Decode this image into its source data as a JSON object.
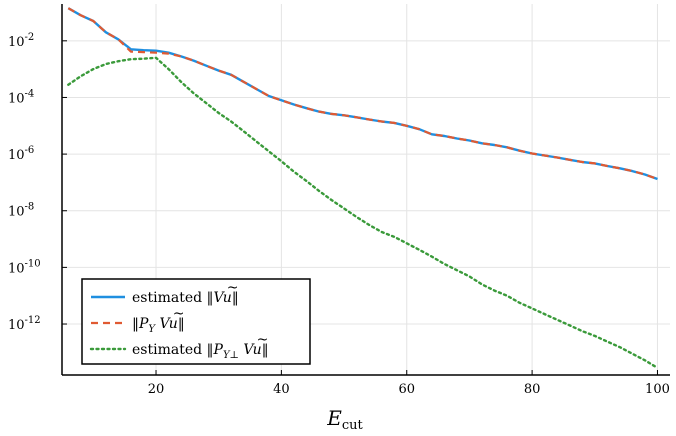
{
  "chart_data": {
    "type": "line",
    "title": "",
    "xlabel": "E",
    "xlabel_sub": "cut",
    "ylabel": "",
    "y_scale": "log",
    "xlim": [
      5,
      102
    ],
    "ylim": [
      -13.8,
      -0.7
    ],
    "grid": true,
    "legend_position": "bottom-left",
    "x_ticks": [
      20,
      40,
      60,
      80,
      100
    ],
    "x_tick_labels": [
      "20",
      "40",
      "60",
      "80",
      "100"
    ],
    "y_ticks": [
      -12,
      -10,
      -8,
      -6,
      -4,
      -2
    ],
    "y_tick_labels": [
      {
        "base": "10",
        "exp": "-12"
      },
      {
        "base": "10",
        "exp": "-10"
      },
      {
        "base": "10",
        "exp": "-8"
      },
      {
        "base": "10",
        "exp": "-6"
      },
      {
        "base": "10",
        "exp": "-4"
      },
      {
        "base": "10",
        "exp": "-2"
      }
    ],
    "x": [
      6,
      8,
      10,
      12,
      14,
      16,
      18,
      20,
      22,
      24,
      26,
      28,
      30,
      32,
      34,
      36,
      38,
      40,
      42,
      44,
      46,
      48,
      50,
      52,
      54,
      56,
      58,
      60,
      62,
      64,
      66,
      68,
      70,
      72,
      74,
      76,
      78,
      80,
      82,
      84,
      86,
      88,
      90,
      92,
      94,
      96,
      98,
      100
    ],
    "series": [
      {
        "name": "estimated ‖V ũ‖",
        "color": "#1f8fe0",
        "dash": "solid",
        "log10_values": [
          -0.85,
          -1.1,
          -1.3,
          -1.7,
          -1.95,
          -2.3,
          -2.33,
          -2.35,
          -2.42,
          -2.55,
          -2.7,
          -2.88,
          -3.05,
          -3.2,
          -3.45,
          -3.7,
          -3.95,
          -4.1,
          -4.25,
          -4.38,
          -4.5,
          -4.58,
          -4.63,
          -4.7,
          -4.78,
          -4.85,
          -4.9,
          -5.0,
          -5.12,
          -5.3,
          -5.36,
          -5.45,
          -5.52,
          -5.62,
          -5.68,
          -5.76,
          -5.88,
          -5.98,
          -6.05,
          -6.12,
          -6.2,
          -6.28,
          -6.33,
          -6.42,
          -6.5,
          -6.6,
          -6.72,
          -6.88
        ]
      },
      {
        "name": "‖P_Y V ũ‖",
        "color": "#e05a32",
        "dash": "dashed",
        "log10_values": [
          -0.85,
          -1.1,
          -1.3,
          -1.7,
          -1.95,
          -2.38,
          -2.4,
          -2.42,
          -2.45,
          -2.55,
          -2.7,
          -2.88,
          -3.05,
          -3.2,
          -3.45,
          -3.7,
          -3.95,
          -4.1,
          -4.25,
          -4.38,
          -4.5,
          -4.58,
          -4.63,
          -4.7,
          -4.78,
          -4.85,
          -4.9,
          -5.0,
          -5.12,
          -5.3,
          -5.36,
          -5.45,
          -5.52,
          -5.62,
          -5.68,
          -5.76,
          -5.88,
          -5.98,
          -6.05,
          -6.12,
          -6.2,
          -6.28,
          -6.33,
          -6.42,
          -6.5,
          -6.6,
          -6.72,
          -6.88
        ]
      },
      {
        "name": "estimated ‖P_{Y⊥} V ũ‖",
        "color": "#3a9a3a",
        "dash": "dotted",
        "log10_values": [
          -3.55,
          -3.25,
          -3.0,
          -2.82,
          -2.72,
          -2.65,
          -2.63,
          -2.6,
          -3.0,
          -3.45,
          -3.85,
          -4.2,
          -4.55,
          -4.85,
          -5.2,
          -5.55,
          -5.9,
          -6.25,
          -6.62,
          -6.95,
          -7.3,
          -7.62,
          -7.92,
          -8.22,
          -8.5,
          -8.75,
          -8.92,
          -9.15,
          -9.38,
          -9.62,
          -9.88,
          -10.1,
          -10.32,
          -10.6,
          -10.82,
          -11.0,
          -11.25,
          -11.45,
          -11.65,
          -11.85,
          -12.05,
          -12.25,
          -12.42,
          -12.62,
          -12.82,
          -13.05,
          -13.28,
          -13.55
        ]
      }
    ]
  },
  "legend": {
    "items": [
      {
        "prefix": "estimated ",
        "norm": "V",
        "sub": "",
        "suffix": ""
      },
      {
        "prefix": "",
        "norm": "P",
        "sub": "Y",
        "suffix": "V"
      },
      {
        "prefix": "estimated ",
        "norm": "P",
        "sub": "Y⊥",
        "suffix": "V"
      }
    ],
    "u_symbol": "u",
    "tilde": "~",
    "bars": "‖"
  }
}
